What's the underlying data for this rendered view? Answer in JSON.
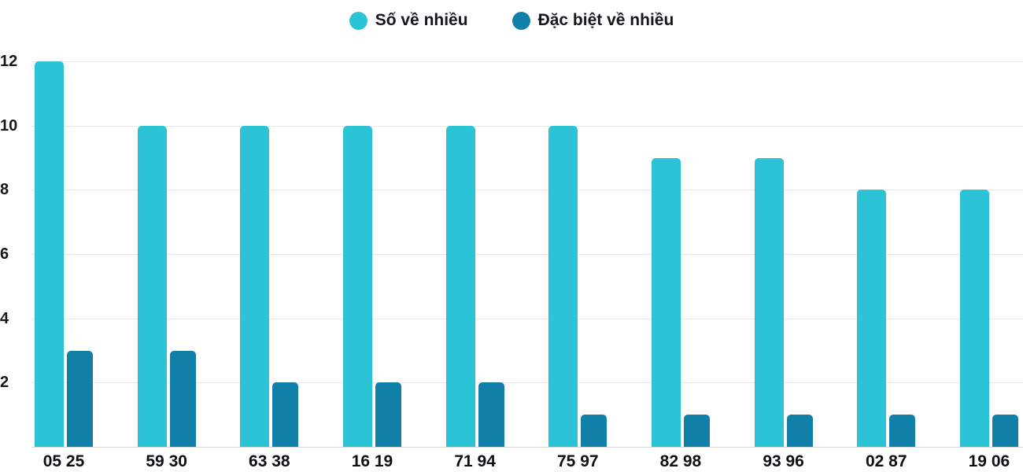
{
  "chart_data": {
    "type": "bar",
    "title": "",
    "xlabel": "",
    "ylabel": "",
    "categories": [
      "05 25",
      "59 30",
      "63 38",
      "16 19",
      "71 94",
      "75 97",
      "82 98",
      "93 96",
      "02 87",
      "19 06"
    ],
    "series": [
      {
        "name": "Số về nhiều",
        "color": "#2bc4d6",
        "values": [
          12,
          10,
          10,
          10,
          10,
          10,
          9,
          9,
          8,
          8
        ]
      },
      {
        "name": "Đặc biệt về nhiều",
        "color": "#1180a8",
        "values": [
          3,
          3,
          2,
          2,
          2,
          1,
          1,
          1,
          1,
          1
        ]
      }
    ],
    "ylim": [
      0,
      12
    ],
    "yticks": [
      2,
      4,
      6,
      8,
      10,
      12
    ],
    "grid": true,
    "legend_position": "top",
    "text_color": "#15171c",
    "gridline_color": "#e7e7e7"
  }
}
